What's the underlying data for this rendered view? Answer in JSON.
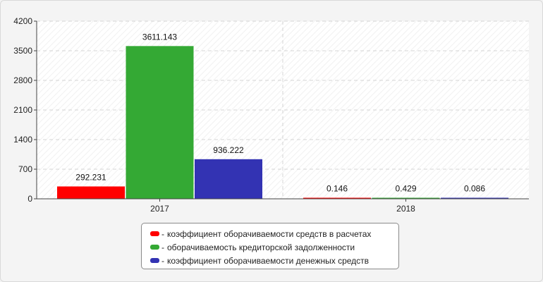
{
  "chart_data": {
    "type": "bar",
    "categories": [
      "2017",
      "2018"
    ],
    "series": [
      {
        "name": "коэффициент оборачиваемости средств в расчетах",
        "color": "#ff0000",
        "values": [
          292.231,
          0.146
        ],
        "labels": [
          "292.231",
          "0.146"
        ]
      },
      {
        "name": "оборачиваемость кредиторской задолженности",
        "color": "#34a934",
        "values": [
          3611.143,
          0.429
        ],
        "labels": [
          "3611.143",
          "0.429"
        ]
      },
      {
        "name": "коэффициент оборачиваемости денежных средств",
        "color": "#3333b3",
        "values": [
          936.222,
          0.086
        ],
        "labels": [
          "936.222",
          "0.086"
        ]
      }
    ],
    "yticks": [
      "0",
      "700",
      "1400",
      "2100",
      "2800",
      "3500",
      "4200"
    ],
    "ylim": [
      0,
      4200
    ],
    "grid": true,
    "legend_position": "bottom"
  },
  "legend": {
    "dash": "-",
    "items": [
      "коэффициент оборачиваемости средств в расчетах",
      "оборачиваемость кредиторской задолженности",
      "коэффициент оборачиваемости денежных средств"
    ]
  }
}
